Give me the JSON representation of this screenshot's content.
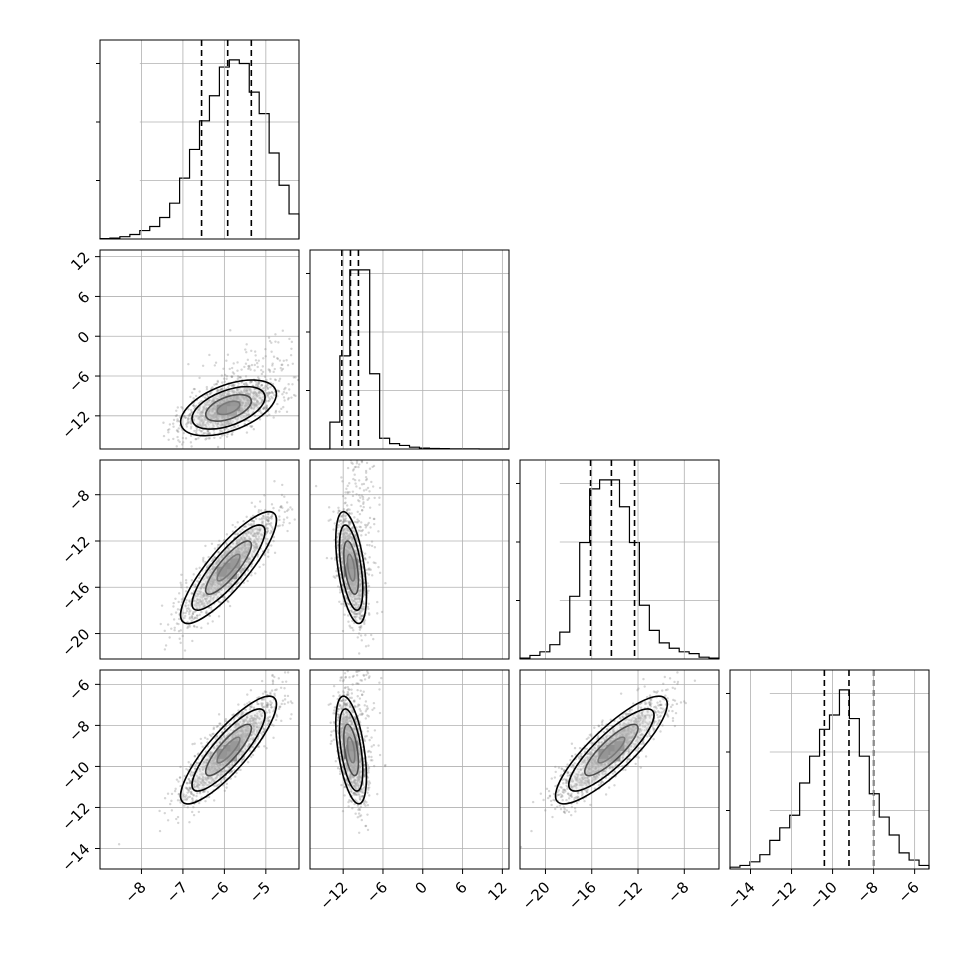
{
  "chart_data": {
    "type": "corner",
    "parameters": 4,
    "grid": true,
    "axes": {
      "p1": {
        "range": [
          -9.0,
          -4.2
        ],
        "ticks": [
          "−8",
          "−7",
          "−6",
          "−5"
        ],
        "tick_values": [
          -8,
          -7,
          -6,
          -5
        ]
      },
      "p2": {
        "range": [
          -17.0,
          13.0
        ],
        "ticks": [
          "−12",
          "−6",
          "0",
          "6",
          "12"
        ],
        "tick_values": [
          -12,
          -6,
          0,
          6,
          12
        ]
      },
      "p3": {
        "range": [
          -22.2,
          -5.0
        ],
        "ticks": [
          "−20",
          "−16",
          "−12",
          "−8"
        ],
        "tick_values": [
          -20,
          -16,
          -12,
          -8
        ]
      },
      "p4": {
        "range": [
          -15.0,
          -5.3
        ],
        "ticks": [
          "−14",
          "−12",
          "−10",
          "−8",
          "−6"
        ],
        "tick_values": [
          -14,
          -12,
          -10,
          -8,
          -6
        ]
      }
    },
    "marginals": [
      {
        "param": "p1",
        "edges_start": -9.0,
        "bin_width": 0.24,
        "counts": [
          0.2,
          0.5,
          1.3,
          2.5,
          4.7,
          7.0,
          12.0,
          20.0,
          34.0,
          50.0,
          66.0,
          80.0,
          96.0,
          100.0,
          98.0,
          82.0,
          70.0,
          48.0,
          30.0,
          14.0
        ],
        "quantiles": [
          -6.55,
          -5.92,
          -5.35
        ]
      },
      {
        "param": "p2",
        "edges_start": -17.0,
        "bin_width": 1.5,
        "counts": [
          0,
          0,
          15,
          52,
          100,
          100,
          42,
          6,
          3,
          2,
          1,
          0.5,
          0.3,
          0.2,
          0.1,
          0.1,
          0.05,
          0,
          0,
          0
        ],
        "quantiles": [
          -12.2,
          -10.9,
          -9.7
        ]
      },
      {
        "param": "p3",
        "edges_start": -22.2,
        "bin_width": 0.86,
        "counts": [
          0.5,
          2,
          4,
          8,
          15,
          35,
          65,
          95,
          100,
          100,
          85,
          65,
          30,
          16,
          9,
          6,
          4,
          3,
          1,
          0.5
        ],
        "quantiles": [
          -16.1,
          -14.3,
          -12.3
        ]
      },
      {
        "param": "p4",
        "edges_start": -15.0,
        "bin_width": 0.485,
        "counts": [
          1,
          2,
          4,
          8,
          16,
          23,
          30,
          48,
          63,
          78,
          86,
          100,
          84,
          63,
          42,
          29,
          19,
          9,
          5,
          2
        ],
        "quantiles": [
          -10.4,
          -9.2,
          -8.0
        ]
      }
    ],
    "pairs": [
      {
        "x": "p1",
        "y": "p2",
        "mean": [
          -5.9,
          -10.8
        ],
        "sd": [
          0.55,
          2.0
        ],
        "rho": 0.5,
        "outlier_frac": 0.15
      },
      {
        "x": "p1",
        "y": "p3",
        "mean": [
          -5.9,
          -14.3
        ],
        "sd": [
          0.55,
          2.3
        ],
        "rho": 0.85,
        "outlier_frac": 0.0
      },
      {
        "x": "p2",
        "y": "p3",
        "mean": [
          -10.8,
          -14.3
        ],
        "sd": [
          1.1,
          2.3
        ],
        "rho": -0.5,
        "outlier_frac": 0.12
      },
      {
        "x": "p1",
        "y": "p4",
        "mean": [
          -5.9,
          -9.2
        ],
        "sd": [
          0.55,
          1.25
        ],
        "rho": 0.85,
        "outlier_frac": 0.0
      },
      {
        "x": "p2",
        "y": "p4",
        "mean": [
          -10.8,
          -9.2
        ],
        "sd": [
          1.1,
          1.25
        ],
        "rho": -0.5,
        "outlier_frac": 0.12
      },
      {
        "x": "p3",
        "y": "p4",
        "mean": [
          -14.3,
          -9.2
        ],
        "sd": [
          2.3,
          1.25
        ],
        "rho": 0.85,
        "outlier_frac": 0.0
      }
    ],
    "colors": {
      "hist": "#000000",
      "points": "#888888",
      "contour": "#000000",
      "grid": "#b0b0b0"
    }
  }
}
